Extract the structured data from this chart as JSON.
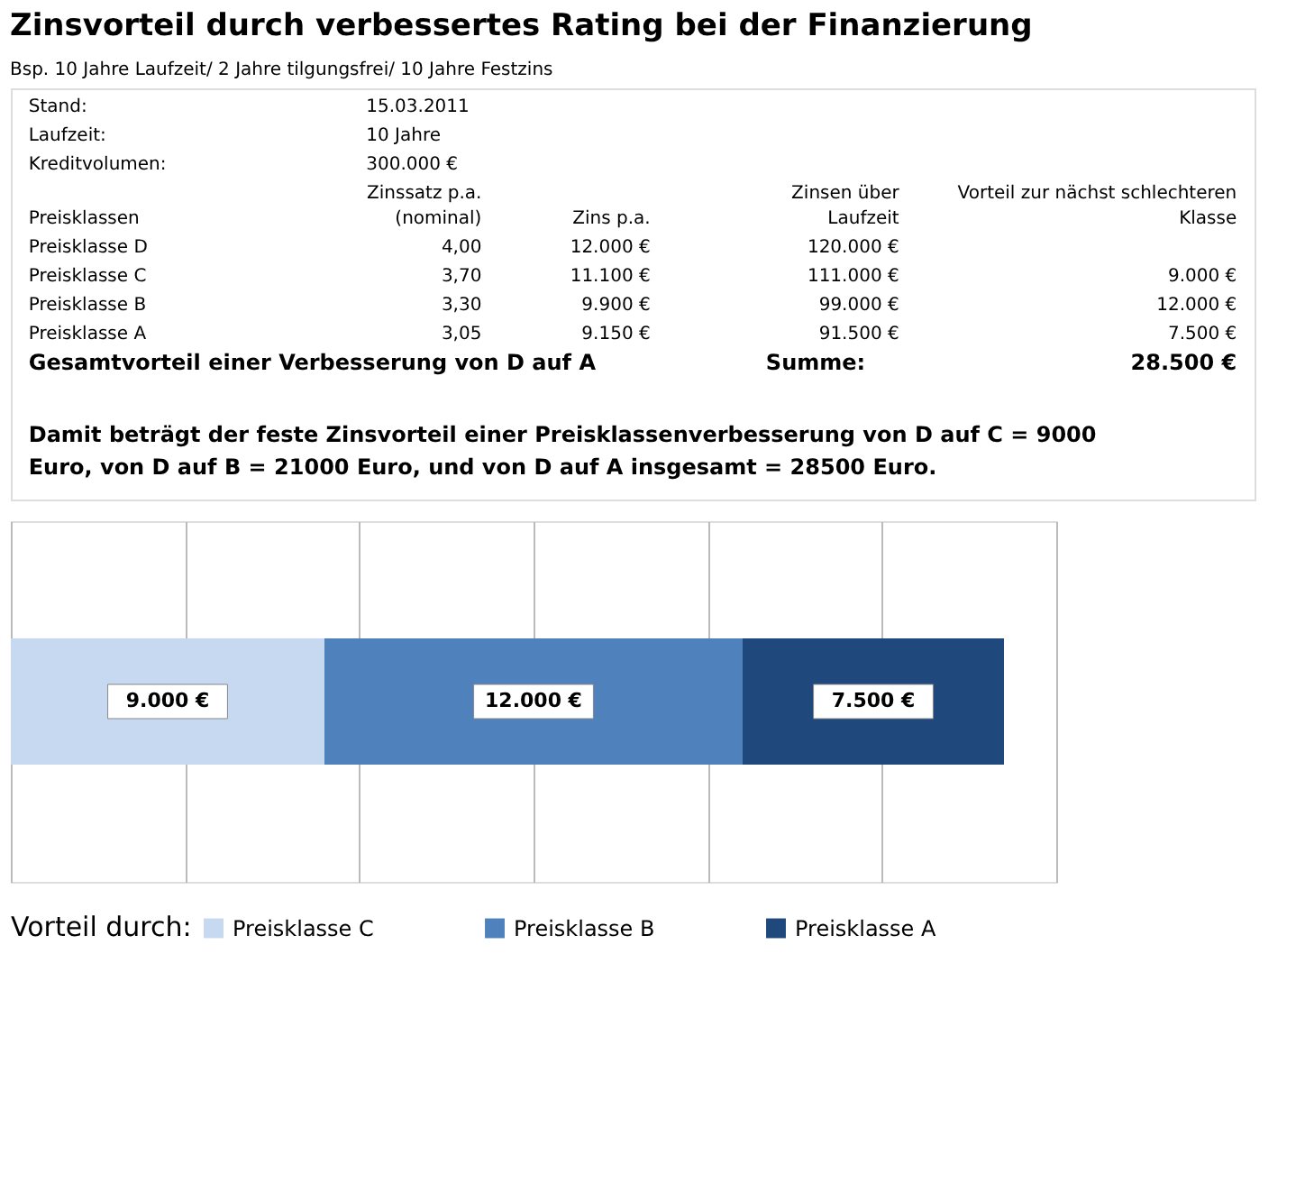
{
  "chart_data": {
    "type": "bar",
    "orientation": "horizontal",
    "stacked": true,
    "title": "Zinsvorteil durch verbessertes Rating bei der Finanzierung",
    "subtitle": "Bsp. 10 Jahre Laufzeit/ 2 Jahre tilgungsfrei/ 10 Jahre Festzins",
    "annotations": [
      "Stand:\t15.03.2011",
      "Laufzeit:\t10 Jahre",
      "Kreditvolumen:\t300.000 €",
      "Preisklassen\tZinssatz p.a. (nominal)\tZins p.a.\tZinsen über Laufzeit\tVorteil zur nächst schlechteren Klasse",
      "Preisklasse D\t4,00\t12.000 €\t120.000 €\t",
      "Preisklasse C\t3,70\t11.100 €\t111.000 €\t9.000 €",
      "Preisklasse B\t3,30\t9.900 €\t99.000 €\t12.000 €",
      "Preisklasse A\t3,05\t9.150 €\t91.500 €\t7.500 €",
      "Gesamtvorteil einer Verbesserung von D auf A\tSumme:\t28.500 €",
      "Damit beträgt der feste Zinsvorteil einer Preisklassenverbesserung von D auf C = 9000 Euro, von D auf B = 21000 Euro, und von D auf A insgesamt = 28500 Euro."
    ],
    "categories": [
      null
    ],
    "series": [
      {
        "name": "Preisklasse C",
        "color": "#c6d9f1",
        "values": [
          9000
        ],
        "value_labels": [
          "9.000 €"
        ]
      },
      {
        "name": "Preisklasse B",
        "color": "#4f81bd",
        "values": [
          12000
        ],
        "value_labels": [
          "12.000 €"
        ]
      },
      {
        "name": "Preisklasse A",
        "color": "#1f497d",
        "values": [
          7500
        ],
        "value_labels": [
          "7.500 €"
        ]
      }
    ],
    "legend_title": "Vorteil durch:",
    "legend": "bottom",
    "xlim": [
      0,
      30000
    ],
    "xticks": [
      {
        "value": 0,
        "label": null
      },
      {
        "value": 5000,
        "label": null
      },
      {
        "value": 10000,
        "label": null
      },
      {
        "value": 15000,
        "label": null
      },
      {
        "value": 20000,
        "label": null
      },
      {
        "value": 25000,
        "label": null
      },
      {
        "value": 30000,
        "label": null
      }
    ],
    "grid": "x",
    "tick_labels": false
  }
}
